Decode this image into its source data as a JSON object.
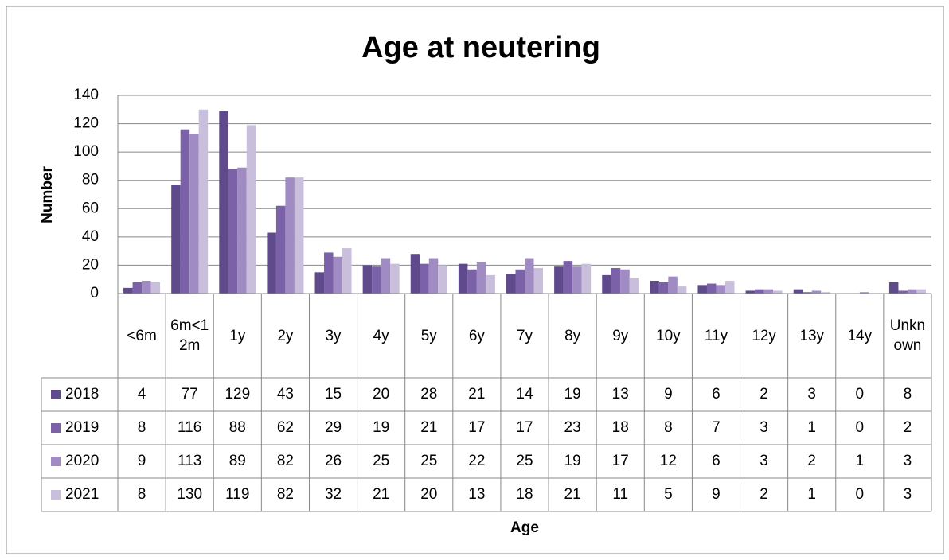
{
  "chart_data": {
    "type": "bar",
    "title": "Age at neutering",
    "x_label": "Age",
    "y_label": "Number",
    "categories": [
      "<6m",
      "6m<12m",
      "1y",
      "2y",
      "3y",
      "4y",
      "5y",
      "6y",
      "7y",
      "8y",
      "9y",
      "10y",
      "11y",
      "12y",
      "13y",
      "14y",
      "Unknown"
    ],
    "series": [
      {
        "name": "2018",
        "color": "#5f4a8b",
        "values": [
          4,
          77,
          129,
          43,
          15,
          20,
          28,
          21,
          14,
          19,
          13,
          9,
          6,
          2,
          3,
          0,
          8
        ]
      },
      {
        "name": "2019",
        "color": "#7b62a8",
        "values": [
          8,
          116,
          88,
          62,
          29,
          19,
          21,
          17,
          17,
          23,
          18,
          8,
          7,
          3,
          1,
          0,
          2
        ]
      },
      {
        "name": "2020",
        "color": "#a08cc2",
        "values": [
          9,
          113,
          89,
          82,
          26,
          25,
          25,
          22,
          25,
          19,
          17,
          12,
          6,
          3,
          2,
          1,
          3
        ]
      },
      {
        "name": "2021",
        "color": "#c9bedb",
        "values": [
          8,
          130,
          119,
          82,
          32,
          21,
          20,
          13,
          18,
          21,
          11,
          5,
          9,
          2,
          1,
          0,
          3
        ]
      }
    ],
    "ylim": [
      0,
      140
    ],
    "yticks": [
      0,
      20,
      40,
      60,
      80,
      100,
      120,
      140
    ],
    "grid": true,
    "data_table": true
  }
}
